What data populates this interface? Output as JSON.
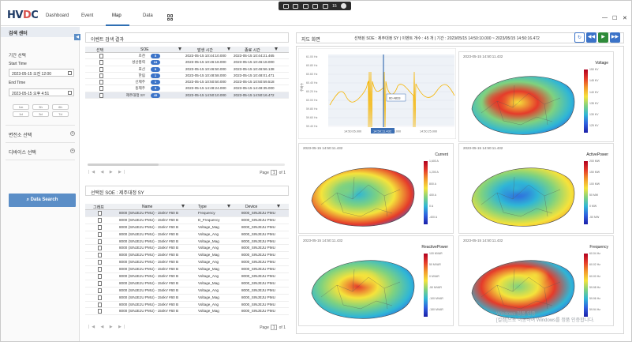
{
  "header": {
    "logo": "HVDC",
    "nav": [
      "Dashboard",
      "Event",
      "Map",
      "Data"
    ],
    "active": "Map",
    "taskbar_count": "15"
  },
  "left": {
    "title": "검색 센터",
    "period_label": "기간 선택",
    "start_label": "Start Time",
    "start_value": "2023-05-15 오전 12:00",
    "end_label": "End Time",
    "end_value": "2023-05-15 오후 4:51",
    "quick": [
      "1m",
      "3h",
      "6h",
      "1d",
      "3d",
      "7d"
    ],
    "sections": [
      "변전소 선택",
      "디바이스 선택"
    ],
    "search_label": "Data Search"
  },
  "event_panel": {
    "title": "이벤트 검색 결과",
    "columns": [
      "선택",
      "SOE",
      "발생 시간",
      "종료 시간"
    ],
    "rows": [
      {
        "soe": "조천",
        "count": "5",
        "start": "2023-05-15 10:44:10.000",
        "end": "2023-05-15 10:44:21.465"
      },
      {
        "soe": "성산풍력",
        "count": "24",
        "start": "2023-05-15 10:46:18.000",
        "end": "2023-05-15 10:46:18.000"
      },
      {
        "soe": "표선",
        "count": "9",
        "start": "2023-05-15 10:46:50.000",
        "end": "2023-05-15 10:46:56.138"
      },
      {
        "soe": "한림",
        "count": "1",
        "start": "2023-05-15 10:48:58.000",
        "end": "2023-05-15 10:48:01.471"
      },
      {
        "soe": "신제주",
        "count": "1",
        "start": "2023-05-15 10:50:50.000",
        "end": "2023-05-15 10:50:59.518"
      },
      {
        "soe": "동제주",
        "count": "3",
        "start": "2023-05-15 14:48:24.000",
        "end": "2023-05-15 14:48:35.000"
      },
      {
        "soe": "제주대정 SY",
        "count": "45",
        "start": "2023-05-15 14:50:10.000",
        "end": "2023-05-15 14:50:16.472"
      }
    ],
    "page_label": "Page",
    "page": "1",
    "of": "of 1"
  },
  "device_panel": {
    "title": "선택된 SOE : 제주대정 SY",
    "columns": [
      "그래프",
      "Name",
      "Type",
      "Device"
    ],
    "rows": [
      {
        "name": "8000 (SINJEJU PMU) - 154kV #60 B",
        "type": "Frequency",
        "device": "8000_SINJEJU PMU"
      },
      {
        "name": "8000 (SINJEJU PMU) - 154kV #60 B",
        "type": "D_Frequency",
        "device": "8000_SINJEJU PMU"
      },
      {
        "name": "8000 (SINJEJU PMU) - 154kV #60 B",
        "type": "Voltage_Mag",
        "device": "8000_SINJEJU PMU"
      },
      {
        "name": "8000 (SINJEJU PMU) - 154kV #60 B",
        "type": "Voltage_Ang",
        "device": "8000_SINJEJU PMU"
      },
      {
        "name": "8000 (SINJEJU PMU) - 154kV #60 B",
        "type": "Voltage_Mag",
        "device": "8000_SINJEJU PMU"
      },
      {
        "name": "8000 (SINJEJU PMU) - 154kV #60 B",
        "type": "Voltage_Ang",
        "device": "8000_SINJEJU PMU"
      },
      {
        "name": "8000 (SINJEJU PMU) - 154kV #60 B",
        "type": "Voltage_Mag",
        "device": "8000_SINJEJU PMU"
      },
      {
        "name": "8000 (SINJEJU PMU) - 154kV #60 B",
        "type": "Voltage_Ang",
        "device": "8000_SINJEJU PMU"
      },
      {
        "name": "8000 (SINJEJU PMU) - 154kV #60 B",
        "type": "Voltage_Mag",
        "device": "8000_SINJEJU PMU"
      },
      {
        "name": "8000 (SINJEJU PMU) - 154kV #60 B",
        "type": "Voltage_Ang",
        "device": "8000_SINJEJU PMU"
      },
      {
        "name": "8000 (SINJEJU PMU) - 154kV #60 B",
        "type": "Voltage_Mag",
        "device": "8000_SINJEJU PMU"
      },
      {
        "name": "8000 (SINJEJU PMU) - 154kV #60 B",
        "type": "Voltage_Ang",
        "device": "8000_SINJEJU PMU"
      },
      {
        "name": "8000 (SINJEJU PMU) - 154kV #60 B",
        "type": "Voltage_Mag",
        "device": "8000_SINJEJU PMU"
      },
      {
        "name": "8000 (SINJEJU PMU) - 154kV #60 B",
        "type": "Voltage_Ang",
        "device": "8000_SINJEJU PMU"
      },
      {
        "name": "8000 (SINJEJU PMU) - 154kV #60 B",
        "type": "Voltage_Mag",
        "device": "8000_SINJEJU PMU"
      }
    ],
    "page_label": "Page",
    "page": "1",
    "of": "of 1"
  },
  "right": {
    "title": "지도 화면",
    "info": "선택된 SOE : 제주대정 SY | 이벤트 개수 : 45 개 | 기간 : 2023/05/15 14:50:10.000 ~ 2023/05/15 14:50:16.472",
    "trend": {
      "ylabel": "주파수",
      "yticks": [
        "61.00 Hz",
        "60.80 Hz",
        "60.60 Hz",
        "60.40 Hz",
        "60.20 Hz",
        "60.00 Hz",
        "59.80 Hz",
        "59.60 Hz",
        "59.40 Hz"
      ],
      "xticks": [
        "14:50:05.000",
        "14:50:13.000",
        "14:50:25.000"
      ],
      "cursor_label": "14:50:11.432",
      "tooltip": "60.4833"
    },
    "maps": [
      {
        "ts": "2023-05-15 14:50:11.432",
        "title": "Voltage",
        "ticks": [
          "150 KV",
          "145 KV",
          "140 KV",
          "135 KV",
          "130 KV",
          "125 KV"
        ]
      },
      {
        "ts": "2023-05-15 14:50:11.432",
        "title": "Current",
        "ticks": [
          "1,600 A",
          "1,200 A",
          "800 A",
          "400 A",
          "0 A",
          "-400 A"
        ]
      },
      {
        "ts": "2023-05-15 14:50:11.432",
        "title": "ActivePower",
        "ticks": [
          "200 MW",
          "150 MW",
          "100 MW",
          "50 MW",
          "0 MW",
          "-50 MW"
        ]
      },
      {
        "ts": "2023-05-15 14:50:11.432",
        "title": "ReactivePower",
        "ticks": [
          "100 MVAR",
          "50 MVAR",
          "0 MVAR",
          "-50 MVAR",
          "-100 MVAR",
          "-150 MVAR"
        ]
      },
      {
        "ts": "2023-05-15 14:50:11.432",
        "title": "Frequency",
        "ticks": [
          "60.04 Hz",
          "60.02 Hz",
          "60.00 Hz",
          "59.98 Hz",
          "59.96 Hz",
          "59.94 Hz"
        ]
      }
    ],
    "watermark1": "Windows 정품 인증",
    "watermark2": "[설정]으로 이동하여 Windows를 정품 인증합니다."
  },
  "colors": {
    "accent": "#3b73c8",
    "button": "#5b8ec7",
    "play": "#2e8b3a"
  }
}
